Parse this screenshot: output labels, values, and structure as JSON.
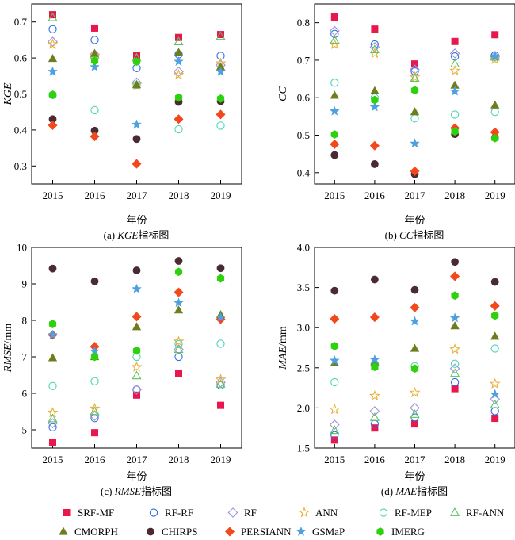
{
  "series_styles": [
    {
      "name": "SRF-MF",
      "marker": "square",
      "color": "#e8174e",
      "filled": true
    },
    {
      "name": "RF-RF",
      "marker": "circle",
      "color": "#2c6fe5",
      "filled": false
    },
    {
      "name": "RF",
      "marker": "diamond",
      "color": "#9f95d6",
      "filled": false
    },
    {
      "name": "ANN",
      "marker": "star",
      "color": "#e9b13c",
      "filled": false
    },
    {
      "name": "RF-MEP",
      "marker": "circle",
      "color": "#4fd5b8",
      "filled": false
    },
    {
      "name": "RF-ANN",
      "marker": "triangle",
      "color": "#5cc560",
      "filled": false
    },
    {
      "name": "CMORPH",
      "marker": "triangle",
      "color": "#6e7d1f",
      "filled": true
    },
    {
      "name": "CHIRPS",
      "marker": "circle",
      "color": "#4a2b34",
      "filled": true
    },
    {
      "name": "PERSIANN",
      "marker": "diamond",
      "color": "#f2481c",
      "filled": true
    },
    {
      "name": "GSMaP",
      "marker": "star",
      "color": "#4ea1e0",
      "filled": true
    },
    {
      "name": "IMERG",
      "marker": "hexagon",
      "color": "#2fd10e",
      "filled": true
    }
  ],
  "chart_data": [
    {
      "type": "scatter",
      "xlabel": "年份",
      "ylabel": "KGE",
      "caption_prefix": "(a) ",
      "caption_italic": "KGE",
      "caption_suffix": "指标图",
      "categories": [
        "2015",
        "2016",
        "2017",
        "2018",
        "2019"
      ],
      "ylim": [
        0.25,
        0.75
      ],
      "yticks": [
        "0.3",
        "0.4",
        "0.5",
        "0.6",
        "0.7"
      ],
      "ytick_values": [
        0.3,
        0.4,
        0.5,
        0.6,
        0.7
      ],
      "series": [
        {
          "name": "SRF-MF",
          "values": [
            0.72,
            0.683,
            0.606,
            0.657,
            0.665
          ]
        },
        {
          "name": "RF-RF",
          "values": [
            0.68,
            0.65,
            0.572,
            0.61,
            0.606
          ]
        },
        {
          "name": "RF",
          "values": [
            0.645,
            0.61,
            0.532,
            0.562,
            0.58
          ]
        },
        {
          "name": "ANN",
          "values": [
            0.638,
            0.605,
            0.525,
            0.553,
            0.585
          ]
        },
        {
          "name": "RF-MEP",
          "values": [
            0.497,
            0.455,
            0.525,
            0.402,
            0.412
          ]
        },
        {
          "name": "RF-ANN",
          "values": [
            0.712,
            0.608,
            0.6,
            0.645,
            0.66
          ]
        },
        {
          "name": "CMORPH",
          "values": [
            0.598,
            0.612,
            0.525,
            0.615,
            0.575
          ]
        },
        {
          "name": "CHIRPS",
          "values": [
            0.43,
            0.398,
            0.375,
            0.478,
            0.48
          ]
        },
        {
          "name": "PERSIANN",
          "values": [
            0.413,
            0.382,
            0.306,
            0.43,
            0.443
          ]
        },
        {
          "name": "GSMaP",
          "values": [
            0.562,
            0.575,
            0.415,
            0.59,
            0.562
          ]
        },
        {
          "name": "IMERG",
          "values": [
            0.498,
            0.592,
            0.59,
            0.49,
            0.487
          ]
        }
      ]
    },
    {
      "type": "scatter",
      "xlabel": "年份",
      "ylabel": "CC",
      "caption_prefix": "(b) ",
      "caption_italic": "CC",
      "caption_suffix": "指标图",
      "categories": [
        "2015",
        "2016",
        "2017",
        "2018",
        "2019"
      ],
      "ylim": [
        0.37,
        0.85
      ],
      "yticks": [
        "0.4",
        "0.5",
        "0.6",
        "0.7",
        "0.8"
      ],
      "ytick_values": [
        0.4,
        0.5,
        0.6,
        0.7,
        0.8
      ],
      "series": [
        {
          "name": "SRF-MF",
          "values": [
            0.815,
            0.783,
            0.69,
            0.75,
            0.768
          ]
        },
        {
          "name": "RF-RF",
          "values": [
            0.77,
            0.742,
            0.67,
            0.71,
            0.713
          ]
        },
        {
          "name": "RF",
          "values": [
            0.778,
            0.735,
            0.675,
            0.718,
            0.71
          ]
        },
        {
          "name": "ANN",
          "values": [
            0.742,
            0.718,
            0.655,
            0.672,
            0.702
          ]
        },
        {
          "name": "RF-MEP",
          "values": [
            0.64,
            0.6,
            0.545,
            0.555,
            0.562
          ]
        },
        {
          "name": "RF-ANN",
          "values": [
            0.753,
            0.728,
            0.652,
            0.69,
            0.708
          ]
        },
        {
          "name": "CMORPH",
          "values": [
            0.606,
            0.618,
            0.562,
            0.633,
            0.58
          ]
        },
        {
          "name": "CHIRPS",
          "values": [
            0.447,
            0.423,
            0.396,
            0.503,
            0.493
          ]
        },
        {
          "name": "PERSIANN",
          "values": [
            0.476,
            0.472,
            0.404,
            0.519,
            0.508
          ]
        },
        {
          "name": "GSMaP",
          "values": [
            0.564,
            0.575,
            0.478,
            0.617,
            0.71
          ]
        },
        {
          "name": "IMERG",
          "values": [
            0.502,
            0.594,
            0.62,
            0.51,
            0.492
          ]
        }
      ]
    },
    {
      "type": "scatter",
      "xlabel": "年份",
      "ylabel": "RMSE",
      "ylabel_unit": "/mm",
      "caption_prefix": "(c) ",
      "caption_italic": "RMSE",
      "caption_suffix": "指标图",
      "categories": [
        "2015",
        "2016",
        "2017",
        "2018",
        "2019"
      ],
      "ylim": [
        4.5,
        10
      ],
      "yticks": [
        "5",
        "6",
        "7",
        "8",
        "9",
        "10"
      ],
      "ytick_values": [
        5,
        6,
        7,
        8,
        9,
        10
      ],
      "series": [
        {
          "name": "SRF-MF",
          "values": [
            4.65,
            4.92,
            5.95,
            6.55,
            5.67
          ]
        },
        {
          "name": "RF-RF",
          "values": [
            5.07,
            5.32,
            6.1,
            7.0,
            6.22
          ]
        },
        {
          "name": "RF",
          "values": [
            5.18,
            5.38,
            6.1,
            7.2,
            6.3
          ]
        },
        {
          "name": "ANN",
          "values": [
            5.47,
            5.58,
            6.72,
            7.42,
            6.38
          ]
        },
        {
          "name": "RF-MEP",
          "values": [
            6.2,
            6.33,
            7.0,
            7.35,
            7.36
          ]
        },
        {
          "name": "RF-ANN",
          "values": [
            5.3,
            5.5,
            6.48,
            7.2,
            6.25
          ]
        },
        {
          "name": "CMORPH",
          "values": [
            6.97,
            7.0,
            7.82,
            8.28,
            8.15
          ]
        },
        {
          "name": "CHIRPS",
          "values": [
            9.42,
            9.07,
            9.37,
            9.63,
            9.43
          ]
        },
        {
          "name": "PERSIANN",
          "values": [
            7.6,
            7.28,
            8.1,
            8.77,
            8.03
          ]
        },
        {
          "name": "GSMaP",
          "values": [
            7.6,
            7.15,
            8.86,
            8.48,
            8.08
          ]
        },
        {
          "name": "IMERG",
          "values": [
            7.9,
            7.0,
            7.17,
            9.33,
            9.15
          ]
        }
      ]
    },
    {
      "type": "scatter",
      "xlabel": "年份",
      "ylabel": "MAE",
      "ylabel_unit": "/mm",
      "caption_prefix": "(d) ",
      "caption_italic": "MAE",
      "caption_suffix": "指标图",
      "categories": [
        "2015",
        "2016",
        "2017",
        "2018",
        "2019"
      ],
      "ylim": [
        1.5,
        4.0
      ],
      "yticks": [
        "1.5",
        "2.0",
        "2.5",
        "3.0",
        "3.5",
        "4.0"
      ],
      "ytick_values": [
        1.5,
        2.0,
        2.5,
        3.0,
        3.5,
        4.0
      ],
      "series": [
        {
          "name": "SRF-MF",
          "values": [
            1.6,
            1.75,
            1.8,
            2.24,
            1.87
          ]
        },
        {
          "name": "RF-RF",
          "values": [
            1.66,
            1.8,
            1.88,
            2.32,
            1.96
          ]
        },
        {
          "name": "RF",
          "values": [
            1.79,
            1.96,
            2.0,
            2.49,
            2.11
          ]
        },
        {
          "name": "ANN",
          "values": [
            1.98,
            2.15,
            2.19,
            2.73,
            2.3
          ]
        },
        {
          "name": "RF-MEP",
          "values": [
            2.32,
            2.55,
            2.52,
            2.55,
            2.74
          ]
        },
        {
          "name": "RF-ANN",
          "values": [
            1.72,
            1.88,
            1.92,
            2.43,
            2.04
          ]
        },
        {
          "name": "CMORPH",
          "values": [
            2.56,
            2.57,
            2.74,
            3.02,
            2.89
          ]
        },
        {
          "name": "CHIRPS",
          "values": [
            3.46,
            3.6,
            3.47,
            3.82,
            3.57
          ]
        },
        {
          "name": "PERSIANN",
          "values": [
            3.11,
            3.13,
            3.25,
            3.64,
            3.27
          ]
        },
        {
          "name": "GSMaP",
          "values": [
            2.59,
            2.6,
            3.08,
            3.12,
            2.17
          ]
        },
        {
          "name": "IMERG",
          "values": [
            2.77,
            2.51,
            2.49,
            3.4,
            3.15
          ]
        }
      ]
    }
  ]
}
